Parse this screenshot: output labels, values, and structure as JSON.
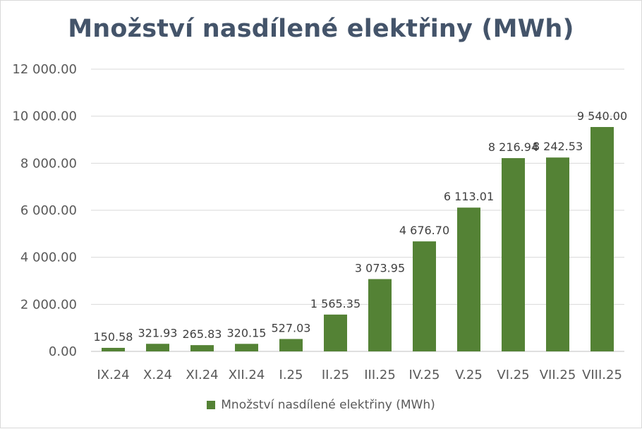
{
  "chart_data": {
    "type": "bar",
    "title": "Množství nasdílené elektřiny (MWh)",
    "categories": [
      "IX.24",
      "X.24",
      "XI.24",
      "XII.24",
      "I.25",
      "II.25",
      "III.25",
      "IV.25",
      "V.25",
      "VI.25",
      "VII.25",
      "VIII.25"
    ],
    "series": [
      {
        "name": "Množství nasdílené elektřiny (MWh)",
        "values": [
          150.58,
          321.93,
          265.83,
          320.15,
          527.03,
          1565.35,
          3073.95,
          4676.7,
          6113.01,
          8216.94,
          8242.53,
          9540.0
        ],
        "data_labels": [
          "150.58",
          "321.93",
          "265.83",
          "320.15",
          "527.03",
          "1 565.35",
          "3 073.95",
          "4 676.70",
          "6 113.01",
          "8 216.94",
          "8 242.53",
          "9 540.00"
        ]
      }
    ],
    "y_ticks": [
      "0.00",
      "2 000.00",
      "4 000.00",
      "6 000.00",
      "8 000.00",
      "10 000.00",
      "12 000.00"
    ],
    "ylim": [
      0,
      12000
    ],
    "grid": true,
    "legend_position": "bottom",
    "bar_color": "#548235",
    "xlabel": "",
    "ylabel": ""
  }
}
